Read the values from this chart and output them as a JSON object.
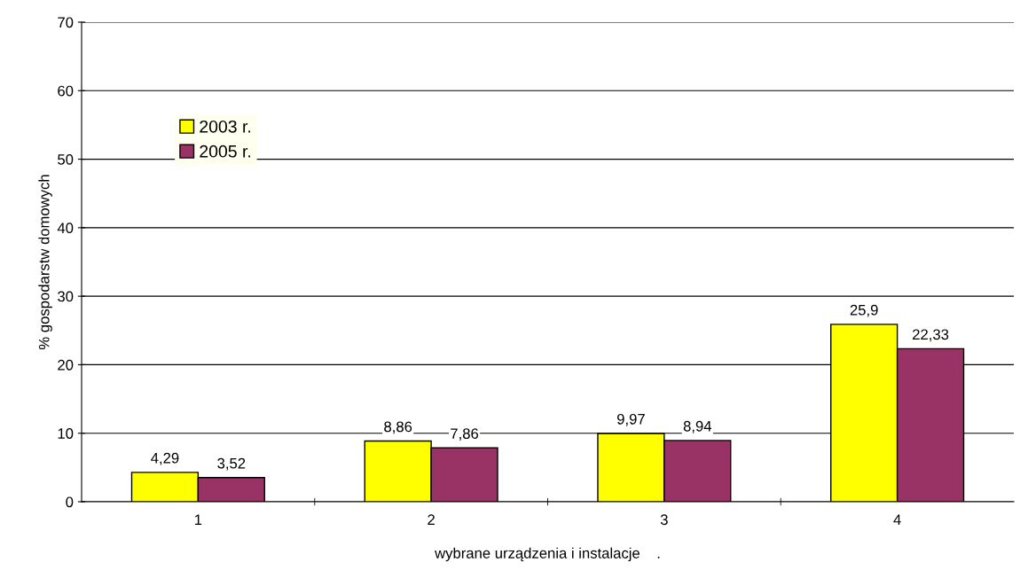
{
  "chart_data": {
    "type": "bar",
    "xlabel": "wybrane urządzenia i instalacje    .",
    "ylabel": "% gospodarstw domowych",
    "categories": [
      "1",
      "2",
      "3",
      "4"
    ],
    "series": [
      {
        "name": "2003 r.",
        "color": "#ffff00",
        "values": [
          4.29,
          8.86,
          9.97,
          25.9
        ],
        "value_labels": [
          "4,29",
          "8,86",
          "9,97",
          "25,9"
        ]
      },
      {
        "name": "2005 r.",
        "color": "#993366",
        "values": [
          3.52,
          7.86,
          8.94,
          22.33
        ],
        "value_labels": [
          "3,52",
          "7,86",
          "8,94",
          "22,33"
        ]
      }
    ],
    "ylim": [
      0,
      70
    ],
    "yticks": [
      0,
      10,
      20,
      30,
      40,
      50,
      60,
      70
    ],
    "grid": "y",
    "legend": "top left"
  }
}
